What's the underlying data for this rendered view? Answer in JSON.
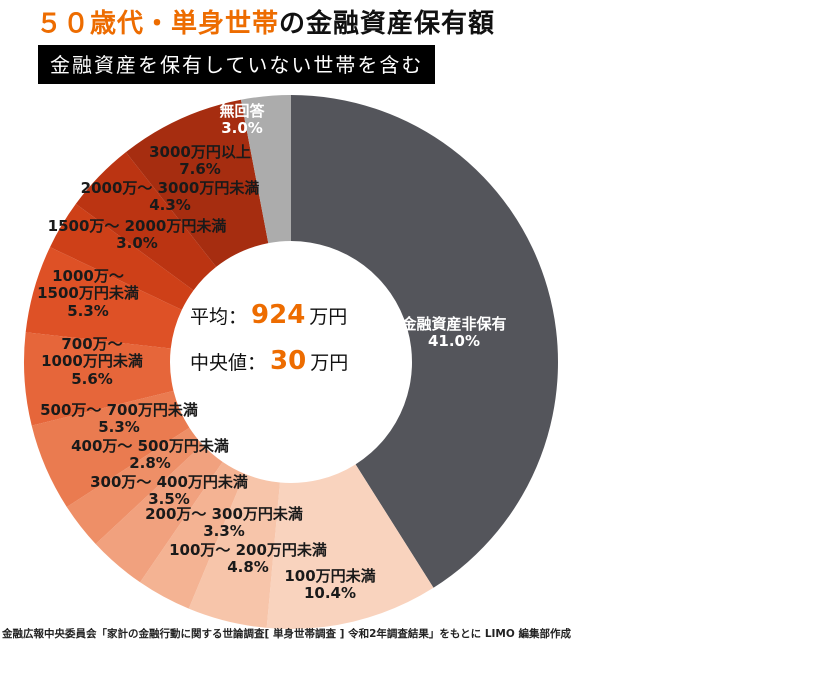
{
  "title": {
    "highlight": "５０歳代・単身世帯",
    "rest": "の金融資産保有額"
  },
  "subtitle_badge": "金融資産を保有していない世帯を含む",
  "center_stats": {
    "average_label": "平均：",
    "average_value": "924",
    "average_unit": "万円",
    "median_label": "中央値：",
    "median_value": "30",
    "median_unit": "万円"
  },
  "source_note": "金融広報中央委員会「家計の金融行動に関する世論調査[ 単身世帯調査 ] 令和2年調査結果」をもとに LIMO 編集部作成",
  "chart_data": {
    "type": "pie",
    "donut": true,
    "title": "５０歳代・単身世帯の金融資産保有額",
    "subtitle": "金融資産を保有していない世帯を含む",
    "start_angle": "top",
    "direction": "clockwise",
    "center_annotations": [
      "平均：924万円",
      "中央値：30万円"
    ],
    "segments": [
      {
        "label": "金融資産非保有",
        "value": 41.0,
        "pct": "41.0%",
        "color": "#54555B"
      },
      {
        "label": "100万円未満",
        "value": 10.4,
        "pct": "10.4%",
        "color": "#F9D3BE"
      },
      {
        "label": "100万〜 200万円未満",
        "value": 4.8,
        "pct": "4.8%",
        "color": "#F7C5AA"
      },
      {
        "label": "200万〜 300万円未満",
        "value": 3.3,
        "pct": "3.3%",
        "color": "#F4B393"
      },
      {
        "label": "300万〜 400万円未満",
        "value": 3.5,
        "pct": "3.5%",
        "color": "#F1A17E"
      },
      {
        "label": "400万〜 500万円未満",
        "value": 2.8,
        "pct": "2.8%",
        "color": "#EE8F67"
      },
      {
        "label": "500万〜 700万円未満",
        "value": 5.3,
        "pct": "5.3%",
        "color": "#EA7B50"
      },
      {
        "label": "700万〜\n1000万円未満",
        "value": 5.6,
        "pct": "5.6%",
        "color": "#E6663A"
      },
      {
        "label": "1000万〜\n1500万円未満",
        "value": 5.3,
        "pct": "5.3%",
        "color": "#DE5126"
      },
      {
        "label": "1500万〜 2000万円未満",
        "value": 3.0,
        "pct": "3.0%",
        "color": "#CE4018"
      },
      {
        "label": "2000万〜 3000万円未満",
        "value": 4.3,
        "pct": "4.3%",
        "color": "#BB3412"
      },
      {
        "label": "3000万円以上",
        "value": 7.6,
        "pct": "7.6%",
        "color": "#A62D10"
      },
      {
        "label": "無回答",
        "value": 3.0,
        "pct": "3.0%",
        "color": "#ACACAC"
      }
    ]
  }
}
